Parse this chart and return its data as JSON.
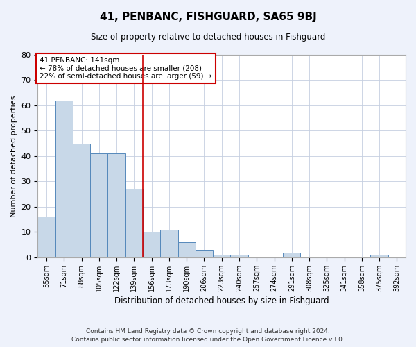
{
  "title": "41, PENBANC, FISHGUARD, SA65 9BJ",
  "subtitle": "Size of property relative to detached houses in Fishguard",
  "xlabel": "Distribution of detached houses by size in Fishguard",
  "ylabel": "Number of detached properties",
  "categories": [
    "55sqm",
    "71sqm",
    "88sqm",
    "105sqm",
    "122sqm",
    "139sqm",
    "156sqm",
    "173sqm",
    "190sqm",
    "206sqm",
    "223sqm",
    "240sqm",
    "257sqm",
    "274sqm",
    "291sqm",
    "308sqm",
    "325sqm",
    "341sqm",
    "358sqm",
    "375sqm",
    "392sqm"
  ],
  "values": [
    16,
    62,
    45,
    41,
    41,
    27,
    10,
    11,
    6,
    3,
    1,
    1,
    0,
    0,
    2,
    0,
    0,
    0,
    0,
    1,
    0
  ],
  "bar_color": "#c8d8e8",
  "bar_edge_color": "#5588bb",
  "vline_x": 5.5,
  "vline_color": "#cc0000",
  "annotation_text": "41 PENBANC: 141sqm\n← 78% of detached houses are smaller (208)\n22% of semi-detached houses are larger (59) →",
  "annotation_box_color": "#ffffff",
  "annotation_box_edge_color": "#cc0000",
  "ylim": [
    0,
    80
  ],
  "yticks": [
    0,
    10,
    20,
    30,
    40,
    50,
    60,
    70,
    80
  ],
  "footer_line1": "Contains HM Land Registry data © Crown copyright and database right 2024.",
  "footer_line2": "Contains public sector information licensed under the Open Government Licence v3.0.",
  "background_color": "#eef2fb",
  "plot_background_color": "#ffffff",
  "grid_color": "#c5cfe0"
}
